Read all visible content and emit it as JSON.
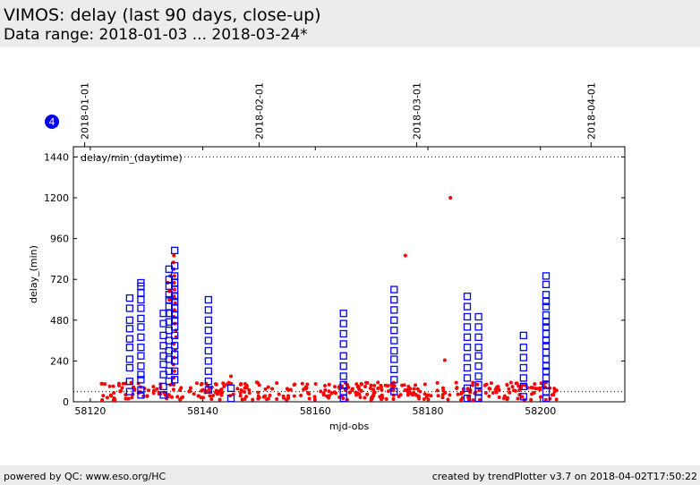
{
  "header": {
    "title": "VIMOS: delay (last 90 days, close-up)",
    "subtitle": "Data range: 2018-01-03 ... 2018-03-24*"
  },
  "footer": {
    "left": "powered by QC: www.eso.org/HC",
    "right": "created by trendPlotter v3.7 on 2018-04-02T17:50:22"
  },
  "badge": {
    "label": "4",
    "color": "#0000ee"
  },
  "chart_data": {
    "type": "scatter",
    "xlabel": "mjd-obs",
    "ylabel": "delay_(min)",
    "panel_label": "delay/min_(daytime)",
    "xlim": [
      58117,
      58215
    ],
    "ylim": [
      0,
      1500
    ],
    "xticks": [
      58120,
      58140,
      58160,
      58180,
      58200
    ],
    "yticks": [
      0,
      240,
      480,
      720,
      960,
      1200,
      1440
    ],
    "date_ticks": [
      {
        "mjd": 58119,
        "label": "2018-01-01"
      },
      {
        "mjd": 58150,
        "label": "2018-02-01"
      },
      {
        "mjd": 58178,
        "label": "2018-03-01"
      },
      {
        "mjd": 58209,
        "label": "2018-04-01"
      }
    ],
    "reference_lines": [
      1440,
      60
    ],
    "grid": "dotted",
    "colors": {
      "night": "#ff0000",
      "daytime": "#0000ff"
    },
    "series": [
      {
        "marker": "open-square",
        "color": "#0000ff",
        "columns": [
          {
            "x": 58127,
            "y": [
              60,
              120,
              200,
              250,
              320,
              370,
              430,
              480,
              550,
              610
            ]
          },
          {
            "x": 58129,
            "y": [
              40,
              70,
              130,
              160,
              210,
              270,
              320,
              380,
              440,
              490,
              550,
              600,
              640,
              680,
              700
            ]
          },
          {
            "x": 58133,
            "y": [
              40,
              90,
              160,
              220,
              270,
              330,
              390,
              460,
              520
            ]
          },
          {
            "x": 58134,
            "y": [
              120,
              180,
              250,
              300,
              360,
              420,
              470,
              520,
              560,
              600,
              630,
              680,
              720,
              780
            ]
          },
          {
            "x": 58135,
            "y": [
              130,
              180,
              240,
              280,
              330,
              390,
              440,
              480,
              510,
              550,
              590,
              620,
              660,
              700,
              740,
              800,
              890
            ]
          },
          {
            "x": 58141,
            "y": [
              70,
              120,
              180,
              240,
              300,
              360,
              420,
              480,
              540,
              600
            ]
          },
          {
            "x": 58145,
            "y": [
              20,
              80
            ]
          },
          {
            "x": 58165,
            "y": [
              20,
              60,
              100,
              150,
              210,
              270,
              340,
              400,
              460,
              520
            ]
          },
          {
            "x": 58174,
            "y": [
              60,
              130,
              190,
              250,
              300,
              360,
              420,
              480,
              540,
              600,
              660
            ]
          },
          {
            "x": 58187,
            "y": [
              20,
              80,
              140,
              200,
              260,
              320,
              380,
              440,
              500,
              560,
              620
            ]
          },
          {
            "x": 58189,
            "y": [
              20,
              60,
              100,
              150,
              210,
              270,
              320,
              380,
              440,
              500
            ]
          },
          {
            "x": 58197,
            "y": [
              30,
              90,
              140,
              200,
              260,
              320,
              390
            ]
          },
          {
            "x": 58201,
            "y": [
              20,
              60,
              100,
              140,
              180,
              210,
              250,
              290,
              330,
              360,
              400,
              440,
              470,
              510,
              560,
              590,
              630,
              690,
              740
            ]
          }
        ]
      },
      {
        "marker": "dot",
        "color": "#ff0000",
        "spikes": [
          {
            "x": 58135,
            "y": [
              100,
              140,
              180,
              220,
              260,
              300,
              340,
              380,
              420,
              460,
              500,
              540,
              580,
              620,
              660,
              700,
              740,
              780,
              820,
              860
            ]
          },
          {
            "x": 58134,
            "y": [
              600,
              650,
              700,
              740
            ]
          }
        ],
        "points": [
          {
            "x": 58176,
            "y": 860
          },
          {
            "x": 58184,
            "y": 1200
          },
          {
            "x": 58183,
            "y": 245
          },
          {
            "x": 58145,
            "y": 150
          }
        ],
        "clusters": [
          {
            "x0": 58122,
            "x1": 58150,
            "n": 130
          },
          {
            "x0": 58150,
            "x1": 58175,
            "n": 125
          },
          {
            "x0": 58175,
            "x1": 58203,
            "n": 135
          }
        ]
      }
    ]
  }
}
